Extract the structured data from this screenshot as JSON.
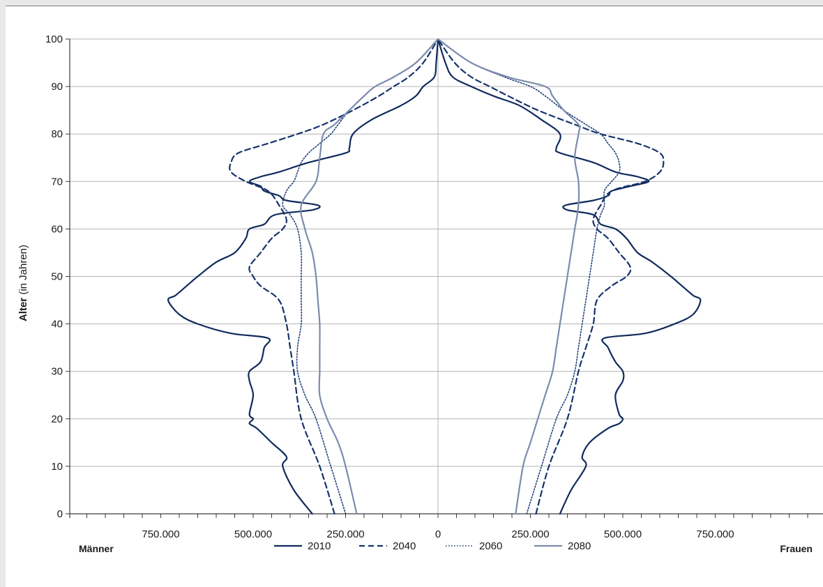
{
  "chart_data": {
    "type": "line",
    "orientation": "population-pyramid",
    "ylabel_bold": "Alter",
    "ylabel_rest": "(in Jahren)",
    "left_label": "Männer",
    "right_label": "Frauen",
    "ylim": [
      0,
      100
    ],
    "xlim": [
      -1000000,
      1000000
    ],
    "y_ticks": [
      0,
      10,
      20,
      30,
      40,
      50,
      60,
      70,
      80,
      90,
      100
    ],
    "x_tick_labels": [
      {
        "value": -750000,
        "label": "750.000"
      },
      {
        "value": -500000,
        "label": "500.000"
      },
      {
        "value": -250000,
        "label": "250.000"
      },
      {
        "value": 0,
        "label": "0"
      },
      {
        "value": 250000,
        "label": "250.000"
      },
      {
        "value": 500000,
        "label": "500.000"
      },
      {
        "value": 750000,
        "label": "750.000"
      }
    ],
    "grid": true,
    "legend_position": "bottom-center",
    "colors": {
      "2010": "#0f2a5c",
      "2040": "#15336b",
      "2060": "#1e3d78",
      "2080": "#7c8bad",
      "grid": "#b3b3b3",
      "axis": "#3a3a3a"
    },
    "series": [
      {
        "name": "2010",
        "style": "solid",
        "ages": [
          0,
          5,
          10,
          12,
          15,
          18,
          19,
          20,
          21,
          25,
          28,
          30,
          32,
          35,
          37,
          38,
          40,
          42,
          45,
          46,
          48,
          50,
          53,
          55,
          58,
          60,
          61,
          63,
          64,
          65,
          66,
          67,
          68,
          69,
          70,
          71,
          72,
          74,
          76,
          77,
          80,
          83,
          86,
          88,
          90,
          92,
          95,
          100
        ],
        "men": [
          340000,
          390000,
          420000,
          410000,
          450000,
          490000,
          510000,
          500000,
          510000,
          500000,
          510000,
          510000,
          480000,
          470000,
          460000,
          560000,
          650000,
          700000,
          730000,
          710000,
          680000,
          650000,
          600000,
          550000,
          520000,
          510000,
          470000,
          440000,
          340000,
          325000,
          410000,
          430000,
          470000,
          480000,
          510000,
          480000,
          430000,
          350000,
          250000,
          240000,
          230000,
          180000,
          100000,
          60000,
          40000,
          10000,
          5000,
          0
        ],
        "women": [
          330000,
          360000,
          400000,
          390000,
          410000,
          460000,
          490000,
          500000,
          490000,
          480000,
          500000,
          500000,
          480000,
          460000,
          450000,
          560000,
          640000,
          690000,
          710000,
          690000,
          660000,
          630000,
          580000,
          540000,
          510000,
          480000,
          440000,
          420000,
          350000,
          345000,
          420000,
          460000,
          470000,
          520000,
          570000,
          540000,
          480000,
          420000,
          330000,
          320000,
          330000,
          280000,
          220000,
          150000,
          90000,
          40000,
          20000,
          0
        ]
      },
      {
        "name": "2040",
        "style": "dashed",
        "ages": [
          0,
          10,
          20,
          30,
          35,
          40,
          45,
          48,
          50,
          52,
          55,
          58,
          60,
          62,
          65,
          68,
          70,
          72,
          74,
          76,
          78,
          80,
          82,
          85,
          88,
          90,
          92,
          95,
          100
        ],
        "men": [
          280000,
          320000,
          370000,
          390000,
          400000,
          410000,
          430000,
          480000,
          500000,
          510000,
          480000,
          450000,
          420000,
          410000,
          430000,
          460000,
          520000,
          560000,
          560000,
          540000,
          460000,
          380000,
          310000,
          230000,
          160000,
          120000,
          80000,
          40000,
          0
        ],
        "women": [
          265000,
          300000,
          350000,
          380000,
          400000,
          420000,
          430000,
          470000,
          510000,
          520000,
          490000,
          460000,
          430000,
          420000,
          440000,
          470000,
          560000,
          600000,
          610000,
          600000,
          540000,
          440000,
          370000,
          270000,
          190000,
          140000,
          90000,
          45000,
          0
        ]
      },
      {
        "name": "2060",
        "style": "dotted",
        "ages": [
          0,
          10,
          20,
          25,
          30,
          35,
          40,
          45,
          50,
          55,
          60,
          63,
          65,
          68,
          70,
          72,
          74,
          76,
          78,
          80,
          82,
          85,
          88,
          90,
          92,
          95,
          100
        ],
        "men": [
          250000,
          290000,
          330000,
          360000,
          380000,
          380000,
          370000,
          370000,
          370000,
          370000,
          380000,
          400000,
          420000,
          410000,
          390000,
          380000,
          370000,
          350000,
          320000,
          290000,
          270000,
          240000,
          200000,
          170000,
          120000,
          60000,
          0
        ],
        "women": [
          240000,
          280000,
          320000,
          350000,
          370000,
          380000,
          390000,
          400000,
          410000,
          420000,
          430000,
          440000,
          450000,
          450000,
          470000,
          490000,
          490000,
          480000,
          460000,
          440000,
          400000,
          340000,
          290000,
          250000,
          180000,
          90000,
          0
        ]
      },
      {
        "name": "2080",
        "style": "solid",
        "ages": [
          0,
          10,
          15,
          20,
          25,
          30,
          35,
          40,
          45,
          50,
          55,
          60,
          65,
          70,
          75,
          80,
          82,
          85,
          88,
          90,
          92,
          95,
          100
        ],
        "men": [
          220000,
          250000,
          270000,
          300000,
          320000,
          320000,
          320000,
          320000,
          325000,
          330000,
          340000,
          360000,
          370000,
          330000,
          320000,
          310000,
          280000,
          240000,
          200000,
          170000,
          120000,
          60000,
          0
        ],
        "women": [
          210000,
          230000,
          250000,
          270000,
          290000,
          310000,
          320000,
          330000,
          340000,
          350000,
          360000,
          370000,
          380000,
          380000,
          370000,
          380000,
          380000,
          340000,
          310000,
          290000,
          190000,
          90000,
          0
        ]
      }
    ]
  }
}
